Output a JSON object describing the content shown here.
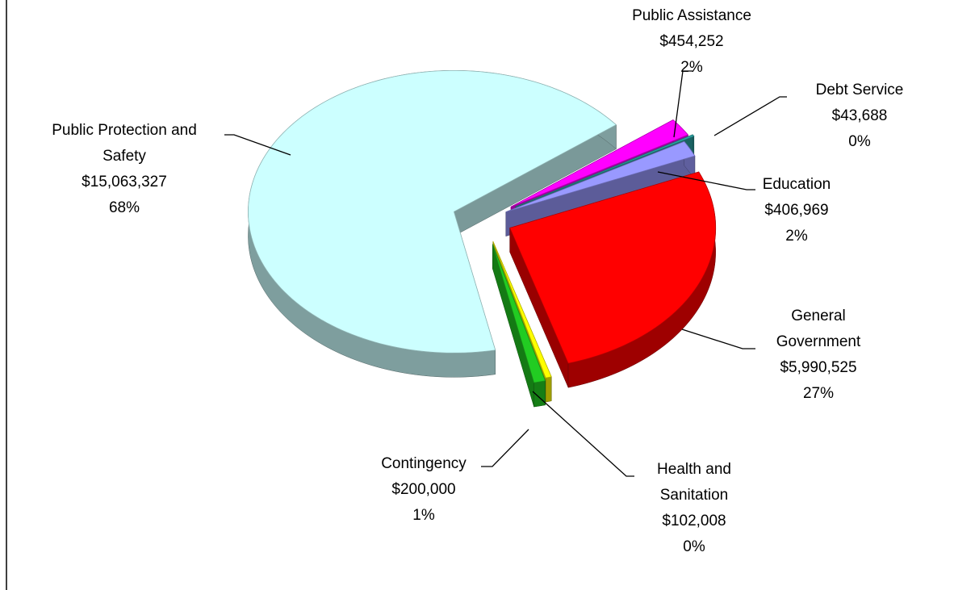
{
  "chart_data": {
    "type": "pie",
    "categories": [
      "Public Assistance",
      "Debt Service",
      "Education",
      "General Government",
      "Health and Sanitation",
      "Contingency",
      "Public Protection and Safety"
    ],
    "values": [
      454252,
      43688,
      406969,
      5990525,
      102008,
      200000,
      15063327
    ],
    "value_labels": [
      "$454,252",
      "$43,688",
      "$406,969",
      "$5,990,525",
      "$102,008",
      "$200,000",
      "$15,063,327"
    ],
    "percent_labels": [
      "2%",
      "0%",
      "2%",
      "27%",
      "0%",
      "1%",
      "68%"
    ],
    "colors": [
      "#ff00ff",
      "#2ca5a5",
      "#9999ff",
      "#ff0000",
      "#ffff00",
      "#22cc22",
      "#ccffff"
    ]
  }
}
